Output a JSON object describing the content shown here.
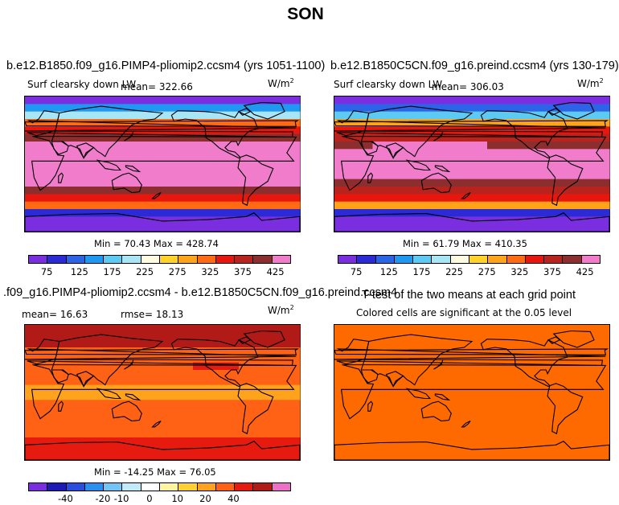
{
  "title": "SON",
  "colors": {
    "abs_palette": [
      "#7b2ee0",
      "#2a2ad6",
      "#2c64e8",
      "#1e98f0",
      "#5ccaf2",
      "#a9e6f5",
      "#fffbe0",
      "#ffd22a",
      "#ffa418",
      "#ff6a12",
      "#e8170d",
      "#b8231e",
      "#8c2e2e",
      "#f07ccb"
    ],
    "diff_palette": [
      "#7b2ee0",
      "#1d1bb8",
      "#2a4fe0",
      "#2b8ff0",
      "#72c5f5",
      "#c2ebfa",
      "#ffffff",
      "#fff4a0",
      "#ffd232",
      "#ffa21c",
      "#ff6214",
      "#e61a0e",
      "#b11a16",
      "#ee70c8"
    ],
    "sig_fill": "#ff6a00"
  },
  "panels": [
    {
      "id": "a",
      "title": "b.e12.B1850.f09_g16.PIMP4-pliomip2.ccsm4 (yrs 1051-1100)",
      "variable": "Surf clearsky down LW",
      "mean_label": "mean= 322.66",
      "units": "W/m",
      "units_sup": "2",
      "minmax": "Min =  70.43 Max = 428.74",
      "colorbar_ticks": [
        "75",
        "125",
        "175",
        "225",
        "275",
        "325",
        "375",
        "425"
      ],
      "stats": {
        "mean": 322.66,
        "min": 70.43,
        "max": 428.74
      }
    },
    {
      "id": "b",
      "title": "b.e12.B1850C5CN.f09_g16.preind.ccsm4 (yrs 130-179)",
      "variable": "Surf clearsky down LW",
      "mean_label": "mean= 306.03",
      "units": "W/m",
      "units_sup": "2",
      "minmax": "Min =  61.79 Max = 410.35",
      "colorbar_ticks": [
        "75",
        "125",
        "175",
        "225",
        "275",
        "325",
        "375",
        "425"
      ],
      "stats": {
        "mean": 306.03,
        "min": 61.79,
        "max": 410.35
      }
    },
    {
      "id": "c",
      "title": ".f09_g16.PIMP4-pliomip2.ccsm4 - b.e12.B1850C5CN.f09_g16.preind.ccsm4",
      "mean_label": "mean=  16.63",
      "rmse_label": "rmse=  18.13",
      "units": "W/m",
      "units_sup": "2",
      "minmax": "Min = -14.25 Max =  76.05",
      "colorbar_ticks": [
        "-40",
        "-20",
        "-10",
        "0",
        "10",
        "20",
        "40"
      ],
      "stats": {
        "mean": 16.63,
        "rmse": 18.13,
        "min": -14.25,
        "max": 76.05
      }
    },
    {
      "id": "d",
      "title": "T-test of the two means at each grid point",
      "subtitle": "Colored cells are significant at the 0.05 level"
    }
  ]
}
